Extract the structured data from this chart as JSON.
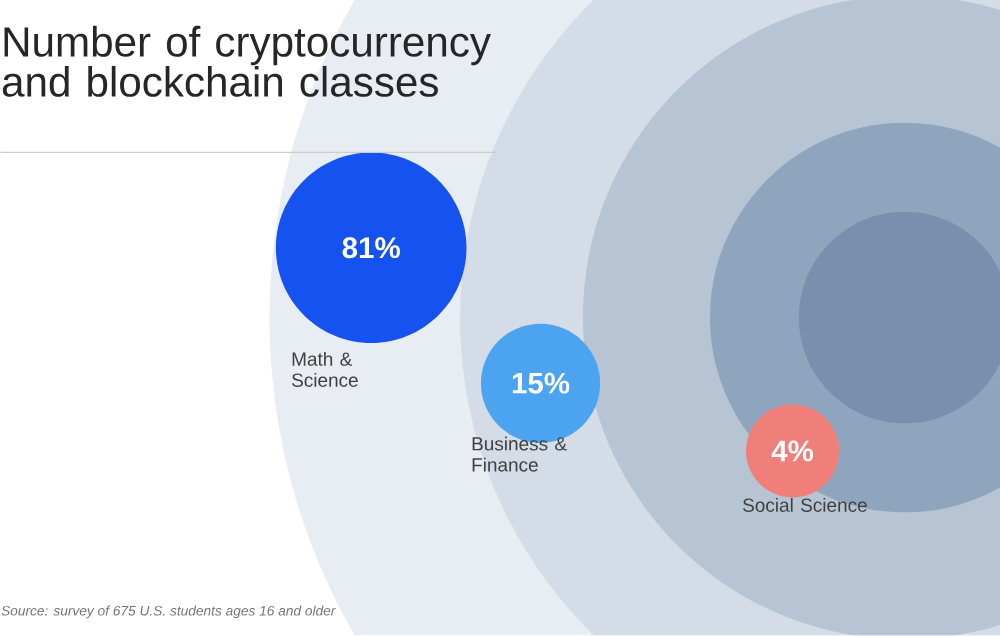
{
  "chart_data": {
    "type": "other",
    "title": "Number of cryptocurrency and blockchain classes",
    "categories": [
      "Math & Science",
      "Business & Finance",
      "Social Science"
    ],
    "values": [
      81,
      15,
      4
    ],
    "value_labels": [
      "81%",
      "15%",
      "4%"
    ],
    "colors": [
      "#1652f0",
      "#4ca3f0",
      "#f07f7a"
    ],
    "annotations": [
      "Source: survey of 675 U.S. students ages 16 and older"
    ]
  }
}
